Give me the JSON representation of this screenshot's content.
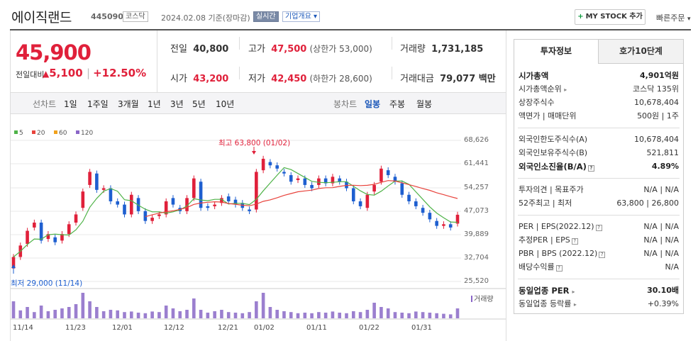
{
  "header": {
    "name": "에이직랜드",
    "code": "445090",
    "market": "코스닥",
    "date": "2024.02.08",
    "basis": "기준(장마감)",
    "realtime": "실시간",
    "company_info": "기업개요",
    "my_stock_btn": "MY STOCK 추가",
    "quick_order": "빠른주문"
  },
  "price": {
    "current": "45,900",
    "compare_label": "전일대비",
    "change": "5,100",
    "change_pct": "+12.50%"
  },
  "summary": {
    "prev_label": "전일",
    "prev": "40,800",
    "open_label": "시가",
    "open": "43,200",
    "high_label": "고가",
    "high": "47,500",
    "upper_limit": "(상한가 53,000)",
    "low_label": "저가",
    "low": "42,450",
    "lower_limit": "(하한가 28,600)",
    "volume_label": "거래량",
    "volume": "1,731,185",
    "amount_label": "거래대금",
    "amount": "79,077 백만"
  },
  "toolbar": {
    "line_label": "선차트",
    "periods": [
      "1일",
      "1주일",
      "3개월",
      "1년",
      "3년",
      "5년",
      "10년"
    ],
    "candle_label": "봉차트",
    "candle_periods": [
      "일봉",
      "주봉",
      "월봉"
    ],
    "candle_selected": "일봉"
  },
  "legend": [
    {
      "label": "5",
      "color": "#4fb348"
    },
    {
      "label": "20",
      "color": "#e8433c"
    },
    {
      "label": "60",
      "color": "#f1a21c"
    },
    {
      "label": "120",
      "color": "#8a66c7"
    }
  ],
  "chart_data": {
    "type": "candlestick",
    "y_ticks": [
      "68,626",
      "61,441",
      "54,257",
      "47,073",
      "39,889",
      "32,704",
      "25,520"
    ],
    "ylim": [
      25520,
      68626
    ],
    "x_ticks": [
      "11/14",
      "11/23",
      "12/01",
      "12/12",
      "12/21",
      "01/02",
      "01/11",
      "01/22",
      "01/31"
    ],
    "high_annotation": "최고 63,800 (01/02)",
    "low_annotation": "최저 29,000 (11/14)",
    "volume_label": "거래량",
    "closes": [
      33000,
      36500,
      41000,
      43500,
      38000,
      40000,
      37500,
      40000,
      43000,
      46000,
      53000,
      59000,
      53500,
      54000,
      50000,
      49000,
      46000,
      52000,
      47000,
      44000,
      45000,
      46000,
      50000,
      49000,
      47000,
      51000,
      57000,
      48000,
      48000,
      49000,
      51000,
      50000,
      49000,
      48000,
      47000,
      59000,
      63000,
      61000,
      60000,
      58500,
      56000,
      57000,
      55000,
      54000,
      57000,
      55500,
      57500,
      56000,
      54000,
      50000,
      48500,
      52000,
      55000,
      60000,
      58000,
      56000,
      52000,
      50000,
      48500,
      46500,
      44500,
      42500,
      43000,
      42000,
      45900
    ],
    "opens": [
      29500,
      33000,
      37000,
      42000,
      43500,
      38500,
      39000,
      38000,
      40000,
      43500,
      48000,
      55000,
      58500,
      53500,
      54000,
      50000,
      49000,
      46000,
      51000,
      47000,
      44000,
      45500,
      46000,
      51000,
      48000,
      47000,
      51000,
      56000,
      48500,
      48500,
      49500,
      51500,
      50500,
      49500,
      47500,
      47500,
      59500,
      62000,
      61000,
      59000,
      58000,
      56500,
      57000,
      55000,
      55000,
      57000,
      55500,
      57000,
      56000,
      54000,
      50000,
      48000,
      53000,
      56000,
      59500,
      57500,
      55500,
      52000,
      50000,
      48000,
      46500,
      44000,
      42500,
      43000,
      43200
    ],
    "volumes": [
      60,
      28,
      40,
      22,
      45,
      25,
      30,
      35,
      40,
      50,
      90,
      60,
      40,
      25,
      30,
      28,
      22,
      24,
      20,
      18,
      24,
      22,
      45,
      35,
      25,
      30,
      70,
      30,
      20,
      25,
      30,
      22,
      20,
      18,
      22,
      60,
      90,
      40,
      30,
      25,
      22,
      18,
      20,
      18,
      22,
      20,
      24,
      20,
      18,
      25,
      22,
      30,
      55,
      40,
      35,
      22,
      20,
      18,
      24,
      22,
      20,
      18,
      16,
      14,
      35
    ]
  },
  "invest": {
    "tab_active": "투자정보",
    "tab_other": "호가10단계",
    "rows1": [
      {
        "k": "시가총액",
        "v": "4,901억원"
      },
      {
        "k": "시가총액순위",
        "v": "코스닥 135위"
      },
      {
        "k": "상장주식수",
        "v": "10,678,404"
      },
      {
        "k": "액면가 | 매매단위",
        "v": "500원 | 1주"
      }
    ],
    "rows2": [
      {
        "k": "외국인한도주식수(A)",
        "v": "10,678,404"
      },
      {
        "k": "외국인보유주식수(B)",
        "v": "521,811"
      },
      {
        "k": "외국인소진율(B/A)",
        "v": "4.89%"
      }
    ],
    "rows3": [
      {
        "k": "투자의견 | 목표주가",
        "v": "N/A | N/A"
      },
      {
        "k": "52주최고 | 최저",
        "v": "63,800 | 26,800"
      }
    ],
    "rows4": [
      {
        "k": "PER | EPS(2022.12)",
        "v": "N/A | N/A"
      },
      {
        "k": "추정PER | EPS",
        "v": "N/A | N/A"
      },
      {
        "k": "PBR | BPS (2022.12)",
        "v": "N/A | N/A"
      },
      {
        "k": "배당수익률",
        "v": "N/A"
      }
    ],
    "rows5": [
      {
        "k": "동일업종 PER",
        "v": "30.10배"
      },
      {
        "k": "동일업종 등락률",
        "v": "+0.39%"
      }
    ]
  }
}
